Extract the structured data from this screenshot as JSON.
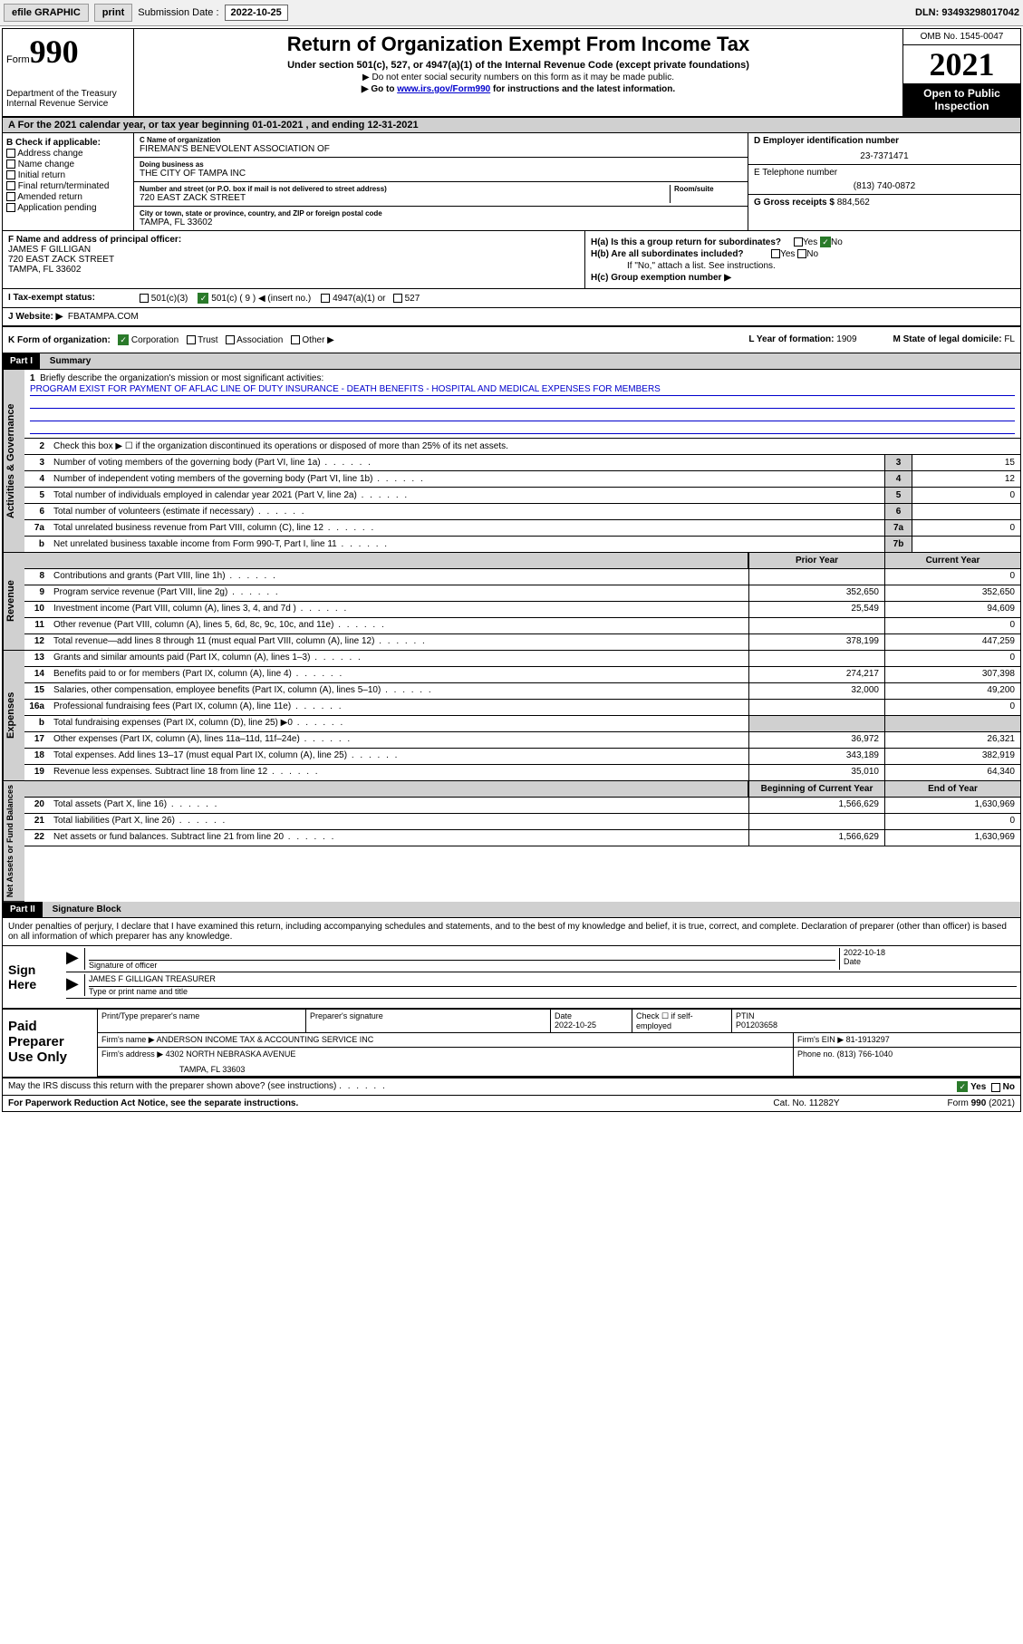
{
  "toolbar": {
    "efile": "efile GRAPHIC",
    "print": "print",
    "sub_label": "Submission Date :",
    "sub_date": "2022-10-25",
    "dln": "DLN: 93493298017042"
  },
  "header": {
    "form": "Form",
    "form_no": "990",
    "title": "Return of Organization Exempt From Income Tax",
    "sub1": "Under section 501(c), 527, or 4947(a)(1) of the Internal Revenue Code (except private foundations)",
    "sub2": "▶ Do not enter social security numbers on this form as it may be made public.",
    "sub3_pre": "▶ Go to ",
    "sub3_link": "www.irs.gov/Form990",
    "sub3_post": " for instructions and the latest information.",
    "dept": "Department of the Treasury\nInternal Revenue Service",
    "omb": "OMB No. 1545-0047",
    "year": "2021",
    "open": "Open to Public Inspection"
  },
  "row_a": "A For the 2021 calendar year, or tax year beginning 01-01-2021   , and ending 12-31-2021",
  "col_b": {
    "label": "B Check if applicable:",
    "opts": [
      "Address change",
      "Name change",
      "Initial return",
      "Final return/terminated",
      "Amended return",
      "Application pending"
    ]
  },
  "col_c": {
    "c_label": "C Name of organization",
    "c_name": "FIREMAN'S BENEVOLENT ASSOCIATION OF",
    "dba_label": "Doing business as",
    "dba": "THE CITY OF TAMPA INC",
    "addr_label": "Number and street (or P.O. box if mail is not delivered to street address)",
    "room_label": "Room/suite",
    "addr": "720 EAST ZACK STREET",
    "city_label": "City or town, state or province, country, and ZIP or foreign postal code",
    "city": "TAMPA, FL  33602"
  },
  "col_d": {
    "d_label": "D Employer identification number",
    "ein": "23-7371471",
    "e_label": "E Telephone number",
    "phone": "(813) 740-0872",
    "g_label": "G Gross receipts $",
    "gross": "884,562"
  },
  "sec_f": {
    "f_label": "F Name and address of principal officer:",
    "name": "JAMES F GILLIGAN",
    "addr1": "720 EAST ZACK STREET",
    "addr2": "TAMPA, FL  33602",
    "ha": "H(a)  Is this a group return for subordinates?",
    "hb": "H(b)  Are all subordinates included?",
    "hb_note": "If \"No,\" attach a list. See instructions.",
    "hc": "H(c)  Group exemption number ▶",
    "yes": "Yes",
    "no": "No"
  },
  "sec_i": {
    "label": "I    Tax-exempt status:",
    "o1": "501(c)(3)",
    "o2": "501(c) ( 9 ) ◀ (insert no.)",
    "o3": "4947(a)(1) or",
    "o4": "527"
  },
  "sec_j": {
    "label": "J   Website: ▶",
    "val": "FBATAMPA.COM"
  },
  "sec_k": {
    "label": "K Form of organization:",
    "o1": "Corporation",
    "o2": "Trust",
    "o3": "Association",
    "o4": "Other ▶",
    "l_label": "L Year of formation:",
    "l_val": "1909",
    "m_label": "M State of legal domicile:",
    "m_val": "FL"
  },
  "part1": {
    "header": "Part I",
    "title": "Summary",
    "q1": "Briefly describe the organization's mission or most significant activities:",
    "mission": "PROGRAM EXIST FOR PAYMENT OF AFLAC LINE OF DUTY INSURANCE - DEATH BENEFITS - HOSPITAL AND MEDICAL EXPENSES FOR MEMBERS",
    "q2": "Check this box ▶ ☐  if the organization discontinued its operations or disposed of more than 25% of its net assets.",
    "lines_single": [
      {
        "n": "3",
        "d": "Number of voting members of the governing body (Part VI, line 1a)",
        "box": "3",
        "v": "15"
      },
      {
        "n": "4",
        "d": "Number of independent voting members of the governing body (Part VI, line 1b)",
        "box": "4",
        "v": "12"
      },
      {
        "n": "5",
        "d": "Total number of individuals employed in calendar year 2021 (Part V, line 2a)",
        "box": "5",
        "v": "0"
      },
      {
        "n": "6",
        "d": "Total number of volunteers (estimate if necessary)",
        "box": "6",
        "v": ""
      },
      {
        "n": "7a",
        "d": "Total unrelated business revenue from Part VIII, column (C), line 12",
        "box": "7a",
        "v": "0"
      },
      {
        "n": "b",
        "d": "Net unrelated business taxable income from Form 990-T, Part I, line 11",
        "box": "7b",
        "v": ""
      }
    ],
    "col_headers": {
      "prior": "Prior Year",
      "current": "Current Year"
    },
    "side_labels": {
      "gov": "Activities & Governance",
      "rev": "Revenue",
      "exp": "Expenses",
      "net": "Net Assets or Fund Balances"
    },
    "revenue": [
      {
        "n": "8",
        "d": "Contributions and grants (Part VIII, line 1h)",
        "p": "",
        "c": "0"
      },
      {
        "n": "9",
        "d": "Program service revenue (Part VIII, line 2g)",
        "p": "352,650",
        "c": "352,650"
      },
      {
        "n": "10",
        "d": "Investment income (Part VIII, column (A), lines 3, 4, and 7d )",
        "p": "25,549",
        "c": "94,609"
      },
      {
        "n": "11",
        "d": "Other revenue (Part VIII, column (A), lines 5, 6d, 8c, 9c, 10c, and 11e)",
        "p": "",
        "c": "0"
      },
      {
        "n": "12",
        "d": "Total revenue—add lines 8 through 11 (must equal Part VIII, column (A), line 12)",
        "p": "378,199",
        "c": "447,259"
      }
    ],
    "expenses": [
      {
        "n": "13",
        "d": "Grants and similar amounts paid (Part IX, column (A), lines 1–3)",
        "p": "",
        "c": "0"
      },
      {
        "n": "14",
        "d": "Benefits paid to or for members (Part IX, column (A), line 4)",
        "p": "274,217",
        "c": "307,398"
      },
      {
        "n": "15",
        "d": "Salaries, other compensation, employee benefits (Part IX, column (A), lines 5–10)",
        "p": "32,000",
        "c": "49,200"
      },
      {
        "n": "16a",
        "d": "Professional fundraising fees (Part IX, column (A), line 11e)",
        "p": "",
        "c": "0"
      },
      {
        "n": "b",
        "d": "Total fundraising expenses (Part IX, column (D), line 25) ▶0",
        "p": "",
        "c": "",
        "shade": true
      },
      {
        "n": "17",
        "d": "Other expenses (Part IX, column (A), lines 11a–11d, 11f–24e)",
        "p": "36,972",
        "c": "26,321"
      },
      {
        "n": "18",
        "d": "Total expenses. Add lines 13–17 (must equal Part IX, column (A), line 25)",
        "p": "343,189",
        "c": "382,919"
      },
      {
        "n": "19",
        "d": "Revenue less expenses. Subtract line 18 from line 12",
        "p": "35,010",
        "c": "64,340"
      }
    ],
    "net_headers": {
      "begin": "Beginning of Current Year",
      "end": "End of Year"
    },
    "net": [
      {
        "n": "20",
        "d": "Total assets (Part X, line 16)",
        "p": "1,566,629",
        "c": "1,630,969"
      },
      {
        "n": "21",
        "d": "Total liabilities (Part X, line 26)",
        "p": "",
        "c": "0"
      },
      {
        "n": "22",
        "d": "Net assets or fund balances. Subtract line 21 from line 20",
        "p": "1,566,629",
        "c": "1,630,969"
      }
    ]
  },
  "part2": {
    "header": "Part II",
    "title": "Signature Block",
    "intro": "Under penalties of perjury, I declare that I have examined this return, including accompanying schedules and statements, and to the best of my knowledge and belief, it is true, correct, and complete. Declaration of preparer (other than officer) is based on all information of which preparer has any knowledge."
  },
  "sign": {
    "label": "Sign Here",
    "sig_label": "Signature of officer",
    "date_label": "Date",
    "date": "2022-10-18",
    "name": "JAMES F GILLIGAN  TREASURER",
    "name_label": "Type or print name and title"
  },
  "preparer": {
    "label": "Paid Preparer Use Only",
    "h1": "Print/Type preparer's name",
    "h2": "Preparer's signature",
    "h3": "Date",
    "h3v": "2022-10-25",
    "h4": "Check ☐ if self-employed",
    "h5": "PTIN",
    "h5v": "P01203658",
    "firm_label": "Firm's name    ▶",
    "firm": "ANDERSON INCOME TAX & ACCOUNTING SERVICE INC",
    "fein_label": "Firm's EIN ▶",
    "fein": "81-1913297",
    "addr_label": "Firm's address ▶",
    "addr1": "4302 NORTH NEBRASKA AVENUE",
    "addr2": "TAMPA, FL  33603",
    "phone_label": "Phone no.",
    "phone": "(813) 766-1040"
  },
  "footer": {
    "q": "May the IRS discuss this return with the preparer shown above? (see instructions)",
    "yes": "Yes",
    "no": "No",
    "paperwork": "For Paperwork Reduction Act Notice, see the separate instructions.",
    "cat": "Cat. No. 11282Y",
    "form": "Form 990 (2021)"
  }
}
